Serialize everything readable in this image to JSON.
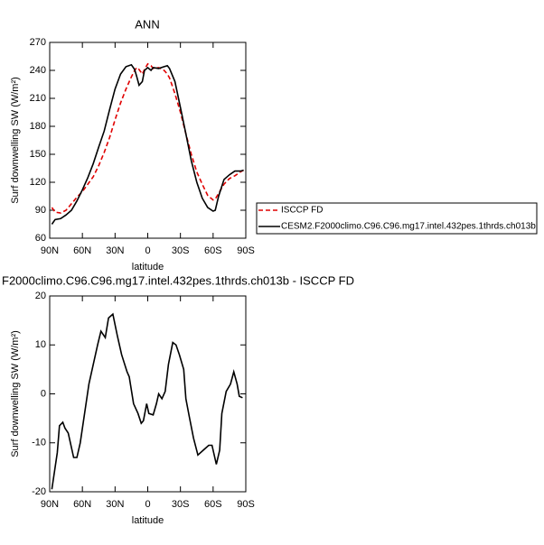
{
  "chart_data": [
    {
      "type": "line",
      "title": "ANN",
      "xlabel": "latitude",
      "ylabel": "Surf downwelling SW (W/m²)",
      "x": [
        88,
        85,
        80,
        75,
        70,
        65,
        60,
        55,
        50,
        45,
        40,
        35,
        30,
        25,
        20,
        15,
        12,
        10,
        8,
        5,
        3,
        0,
        -3,
        -5,
        -10,
        -15,
        -18,
        -20,
        -25,
        -30,
        -35,
        -40,
        -45,
        -50,
        -55,
        -60,
        -62,
        -65,
        -70,
        -75,
        -80,
        -85,
        -88
      ],
      "series": [
        {
          "name": "ISCCP FD",
          "color": "#e00000",
          "dash": true,
          "values": [
            93,
            88,
            87,
            90,
            97,
            104,
            110,
            118,
            126,
            138,
            152,
            168,
            187,
            205,
            220,
            233,
            240,
            243,
            241,
            236,
            241,
            247,
            245,
            242,
            243,
            240,
            236,
            232,
            215,
            195,
            172,
            150,
            131,
            118,
            106,
            101,
            102,
            108,
            118,
            124,
            127,
            131,
            133
          ]
        },
        {
          "name": "CESM2.F2000climo.C96.C96.mg17.intel.432pes.1thrds.ch013b",
          "color": "#000000",
          "dash": false,
          "values": [
            75,
            80,
            81,
            85,
            90,
            100,
            112,
            125,
            140,
            158,
            175,
            198,
            220,
            236,
            244,
            246,
            241,
            233,
            224,
            228,
            240,
            243,
            240,
            243,
            242,
            244,
            245,
            242,
            228,
            200,
            172,
            143,
            120,
            103,
            93,
            89,
            90,
            105,
            123,
            128,
            132,
            132,
            133
          ]
        }
      ],
      "xlim": [
        90,
        -90
      ],
      "xticks": [
        {
          "value": 90,
          "label": "90N"
        },
        {
          "value": 60,
          "label": "60N"
        },
        {
          "value": 30,
          "label": "30N"
        },
        0,
        {
          "value": -30,
          "label": "30S"
        },
        {
          "value": -60,
          "label": "60S"
        },
        {
          "value": -90,
          "label": "90S"
        }
      ],
      "ylim": [
        60,
        270
      ],
      "yticks": [
        60,
        90,
        120,
        150,
        180,
        210,
        240,
        270
      ],
      "legend": "right"
    },
    {
      "type": "line",
      "title": "F2000climo.C96.C96.mg17.intel.432pes.1thrds.ch013b - ISCCP FD",
      "xlabel": "latitude",
      "ylabel": "Surf downwelling SW (W/m²)",
      "x": [
        88,
        83,
        81,
        78,
        76,
        73,
        68,
        65,
        62,
        58,
        54,
        50,
        46,
        43,
        39,
        36,
        32,
        28,
        24,
        19,
        17,
        13,
        9,
        6,
        4,
        1,
        -1,
        -5,
        -8,
        -10,
        -13,
        -16,
        -19,
        -23,
        -26,
        -29,
        -33,
        -35,
        -38,
        -42,
        -46,
        -51,
        -56,
        -59,
        -63,
        -66,
        -68,
        -72,
        -76,
        -79,
        -82,
        -84,
        -87
      ],
      "series": [
        {
          "color": "#000000",
          "dash": false,
          "values": [
            -19.5,
            -12,
            -6.5,
            -5.8,
            -7,
            -8,
            -13,
            -13,
            -10,
            -4,
            2,
            6,
            10,
            12.8,
            11.5,
            15.5,
            16.3,
            12,
            8,
            4.5,
            3.5,
            -2,
            -4,
            -6,
            -5.5,
            -2,
            -4,
            -4.3,
            -2,
            0,
            -1,
            0.5,
            6,
            10.5,
            10,
            8,
            5,
            -1,
            -4.5,
            -9,
            -12.5,
            -11.5,
            -10.5,
            -10.5,
            -14.4,
            -11.5,
            -4,
            0.5,
            2,
            4.5,
            2,
            -0.5,
            -0.8
          ]
        }
      ],
      "xlim": [
        90,
        -90
      ],
      "xticks": [
        {
          "value": 90,
          "label": "90N"
        },
        {
          "value": 60,
          "label": "60N"
        },
        {
          "value": 30,
          "label": "30N"
        },
        0,
        {
          "value": -30,
          "label": "30S"
        },
        {
          "value": -60,
          "label": "60S"
        },
        {
          "value": -90,
          "label": "90S"
        }
      ],
      "ylim": [
        -20,
        20
      ],
      "yticks": [
        -20,
        -10,
        0,
        10,
        20
      ]
    }
  ]
}
